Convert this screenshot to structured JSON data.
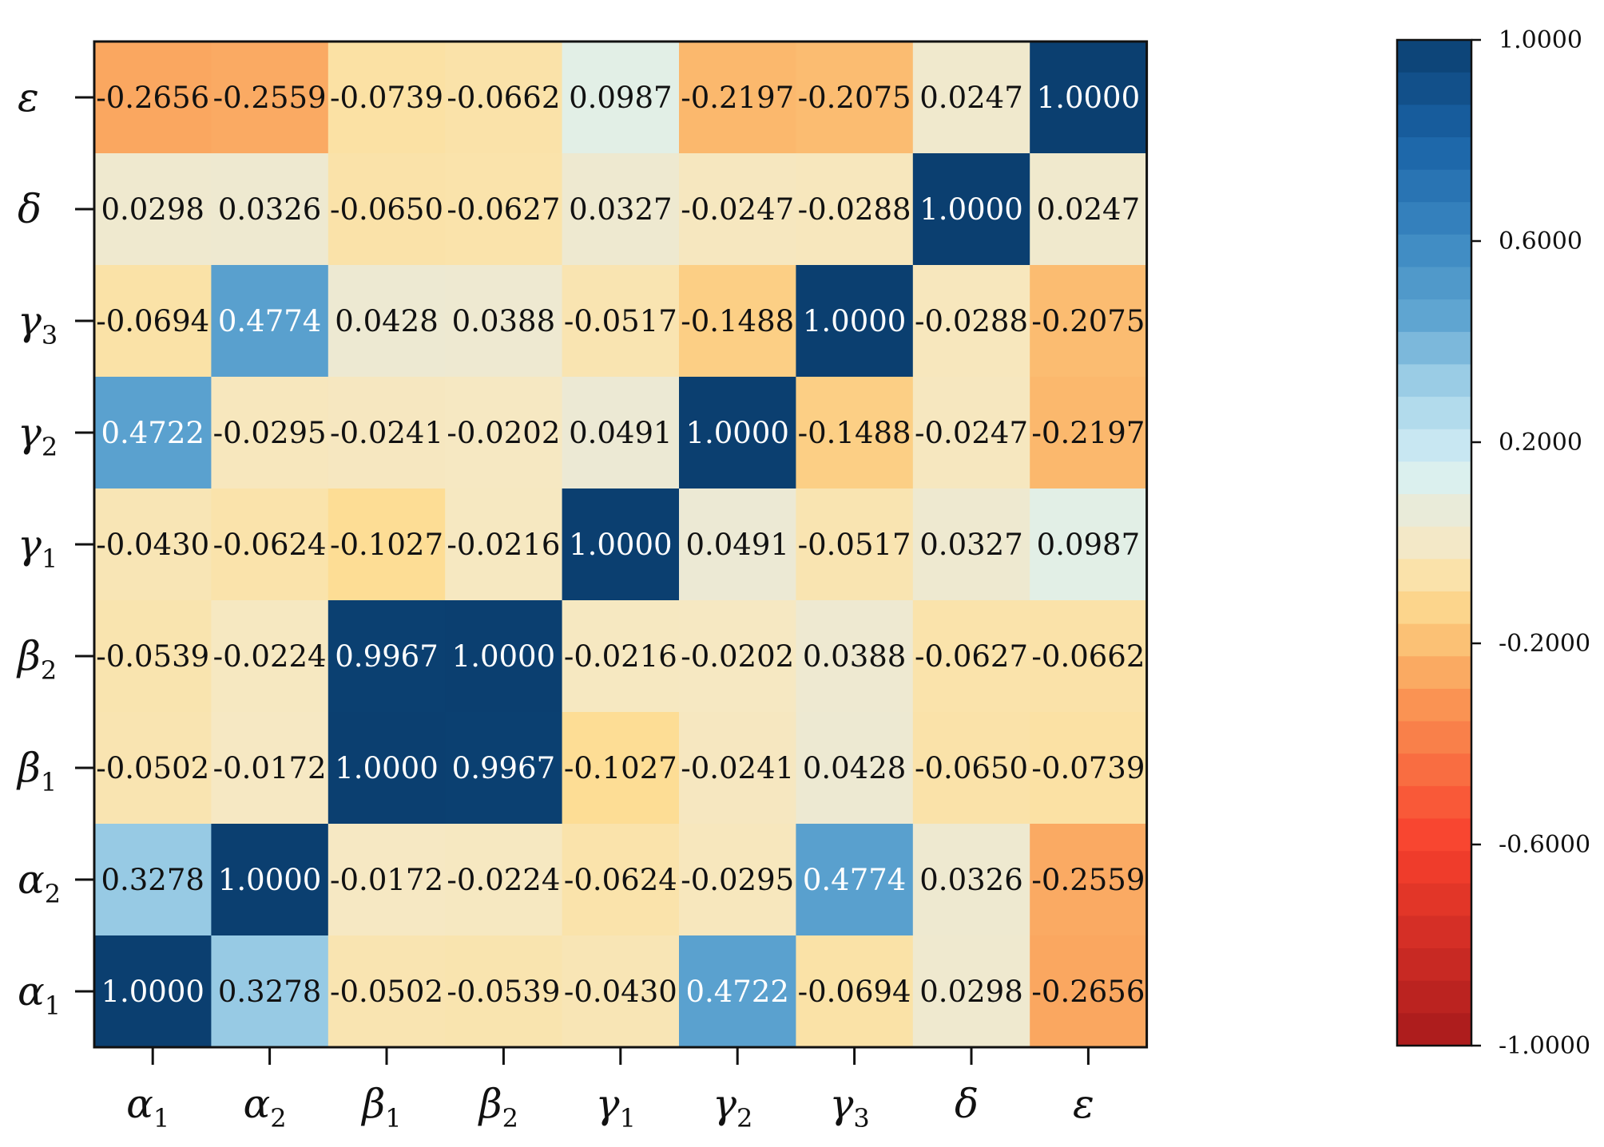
{
  "chart_data": {
    "type": "heatmap",
    "title": "",
    "x_labels": [
      {
        "base": "α",
        "sub": "1"
      },
      {
        "base": "α",
        "sub": "2"
      },
      {
        "base": "β",
        "sub": "1"
      },
      {
        "base": "β",
        "sub": "2"
      },
      {
        "base": "γ",
        "sub": "1"
      },
      {
        "base": "γ",
        "sub": "2"
      },
      {
        "base": "γ",
        "sub": "3"
      },
      {
        "base": "δ",
        "sub": ""
      },
      {
        "base": "ε",
        "sub": ""
      }
    ],
    "y_labels_top_to_bottom": [
      {
        "base": "ε",
        "sub": ""
      },
      {
        "base": "δ",
        "sub": ""
      },
      {
        "base": "γ",
        "sub": "3"
      },
      {
        "base": "γ",
        "sub": "2"
      },
      {
        "base": "γ",
        "sub": "1"
      },
      {
        "base": "β",
        "sub": "2"
      },
      {
        "base": "β",
        "sub": "1"
      },
      {
        "base": "α",
        "sub": "2"
      },
      {
        "base": "α",
        "sub": "1"
      }
    ],
    "matrix_top_to_bottom": [
      [
        "-0.2656",
        "-0.2559",
        "-0.0739",
        "-0.0662",
        "0.0987",
        "-0.2197",
        "-0.2075",
        "0.0247",
        "1.0000"
      ],
      [
        "0.0298",
        "0.0326",
        "-0.0650",
        "-0.0627",
        "0.0327",
        "-0.0247",
        "-0.0288",
        "1.0000",
        "0.0247"
      ],
      [
        "-0.0694",
        "0.4774",
        "0.0428",
        "0.0388",
        "-0.0517",
        "-0.1488",
        "1.0000",
        "-0.0288",
        "-0.2075"
      ],
      [
        "0.4722",
        "-0.0295",
        "-0.0241",
        "-0.0202",
        "0.0491",
        "1.0000",
        "-0.1488",
        "-0.0247",
        "-0.2197"
      ],
      [
        "-0.0430",
        "-0.0624",
        "-0.1027",
        "-0.0216",
        "1.0000",
        "0.0491",
        "-0.0517",
        "0.0327",
        "0.0987"
      ],
      [
        "-0.0539",
        "-0.0224",
        "0.9967",
        "1.0000",
        "-0.0216",
        "-0.0202",
        "0.0388",
        "-0.0627",
        "-0.0662"
      ],
      [
        "-0.0502",
        "-0.0172",
        "1.0000",
        "0.9967",
        "-0.1027",
        "-0.0241",
        "0.0428",
        "-0.0650",
        "-0.0739"
      ],
      [
        "0.3278",
        "1.0000",
        "-0.0172",
        "-0.0224",
        "-0.0624",
        "-0.0295",
        "0.4774",
        "0.0326",
        "-0.2559"
      ],
      [
        "1.0000",
        "0.3278",
        "-0.0502",
        "-0.0539",
        "-0.0430",
        "0.4722",
        "-0.0694",
        "0.0298",
        "-0.2656"
      ]
    ],
    "colorbar": {
      "min": -1.0,
      "max": 1.0,
      "tick_values": [
        1.0,
        0.6,
        0.2,
        -0.2,
        -0.6,
        -1.0
      ],
      "tick_labels": [
        "1.0000",
        "0.6000",
        "0.2000",
        "-0.2000",
        "-0.6000",
        "-1.0000"
      ],
      "bins": 31,
      "colormap": "RdYlBu-like (red at -1, cream near 0, dark blue at +1)"
    },
    "legend_position": "right"
  },
  "colors": {
    "stops": [
      {
        "v": -1.0,
        "c": "#a81a1c"
      },
      {
        "v": -0.6,
        "c": "#f8402d"
      },
      {
        "v": -0.3,
        "c": "#fa9a56"
      },
      {
        "v": -0.2,
        "c": "#fbbf73"
      },
      {
        "v": -0.1,
        "c": "#fdde96"
      },
      {
        "v": -0.02,
        "c": "#f6e8c2"
      },
      {
        "v": 0.05,
        "c": "#ece9d4"
      },
      {
        "v": 0.12,
        "c": "#def1ee"
      },
      {
        "v": 0.2,
        "c": "#c6e6f2"
      },
      {
        "v": 0.3,
        "c": "#a4d3e8"
      },
      {
        "v": 0.45,
        "c": "#5fa5d1"
      },
      {
        "v": 0.6,
        "c": "#3c89c2"
      },
      {
        "v": 0.8,
        "c": "#1a63a6"
      },
      {
        "v": 1.0,
        "c": "#0b3f70"
      }
    ],
    "light_text_threshold": 0.45,
    "light_text": "#ffffff",
    "dark_text": "#111111"
  }
}
